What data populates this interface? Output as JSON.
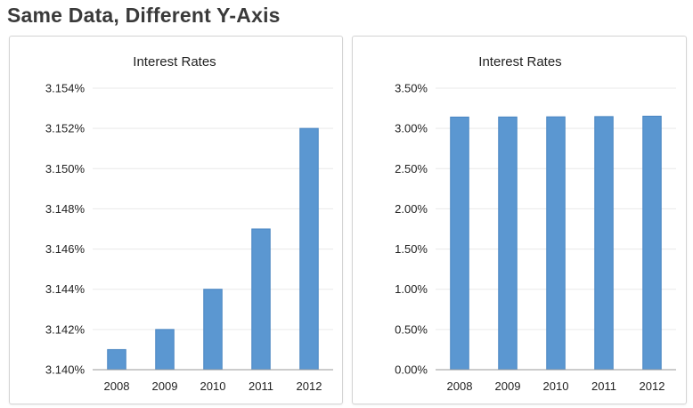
{
  "page": {
    "title": "Same Data, Different Y-Axis"
  },
  "chart_data": [
    {
      "type": "bar",
      "title": "Interest Rates",
      "categories": [
        "2008",
        "2009",
        "2010",
        "2011",
        "2012"
      ],
      "series": [
        {
          "values": [
            3.141,
            3.142,
            3.144,
            3.147,
            3.152
          ]
        }
      ],
      "ylim": [
        3.14,
        3.154
      ],
      "yticks": [
        3.14,
        3.142,
        3.144,
        3.146,
        3.148,
        3.15,
        3.152,
        3.154
      ],
      "ytick_labels": [
        "3.140%",
        "3.142%",
        "3.144%",
        "3.146%",
        "3.148%",
        "3.150%",
        "3.152%",
        "3.154%"
      ],
      "xlabel": "",
      "ylabel": "",
      "grid": true,
      "legend": "none",
      "bar_color": "#5b97d1"
    },
    {
      "type": "bar",
      "title": "Interest Rates",
      "categories": [
        "2008",
        "2009",
        "2010",
        "2011",
        "2012"
      ],
      "series": [
        {
          "values": [
            3.141,
            3.142,
            3.144,
            3.147,
            3.152
          ]
        }
      ],
      "ylim": [
        0,
        3.5
      ],
      "yticks": [
        0,
        0.5,
        1.0,
        1.5,
        2.0,
        2.5,
        3.0,
        3.5
      ],
      "ytick_labels": [
        "0.00%",
        "0.50%",
        "1.00%",
        "1.50%",
        "2.00%",
        "2.50%",
        "3.00%",
        "3.50%"
      ],
      "xlabel": "",
      "ylabel": "",
      "grid": true,
      "legend": "none",
      "bar_color": "#5b97d1"
    }
  ]
}
